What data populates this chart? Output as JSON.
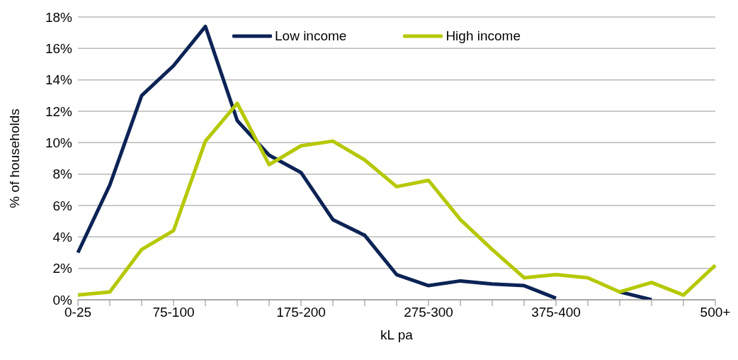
{
  "chart_data": {
    "type": "line",
    "xlabel": "kL pa",
    "ylabel": "% of households",
    "categories": [
      "0-25",
      null,
      null,
      "75-100",
      null,
      null,
      null,
      "175-200",
      null,
      null,
      null,
      "275-300",
      null,
      null,
      null,
      "375-400",
      null,
      null,
      null,
      null,
      "500+"
    ],
    "series": [
      {
        "name": "Low income",
        "color": "#0c2355",
        "values": [
          3.0,
          7.3,
          13.0,
          14.9,
          17.4,
          11.4,
          9.2,
          8.1,
          5.1,
          4.1,
          1.6,
          0.9,
          1.2,
          1.0,
          0.9,
          0.1,
          null,
          0.5,
          0.0,
          null,
          null
        ]
      },
      {
        "name": "High income",
        "color": "#b5c800",
        "values": [
          0.3,
          0.5,
          3.2,
          4.4,
          10.1,
          12.5,
          8.6,
          9.8,
          10.1,
          8.9,
          7.2,
          7.6,
          5.1,
          3.2,
          1.4,
          1.6,
          1.4,
          0.5,
          1.1,
          0.3,
          2.2
        ]
      }
    ],
    "ylim": [
      0,
      18
    ],
    "yticks": [
      {
        "value": 0,
        "label": "0%"
      },
      {
        "value": 2,
        "label": "2%"
      },
      {
        "value": 4,
        "label": "4%"
      },
      {
        "value": 6,
        "label": "6%"
      },
      {
        "value": 8,
        "label": "8%"
      },
      {
        "value": 10,
        "label": "10%"
      },
      {
        "value": 12,
        "label": "12%"
      },
      {
        "value": 14,
        "label": "14%"
      },
      {
        "value": 16,
        "label": "16%"
      },
      {
        "value": 18,
        "label": "18%"
      }
    ],
    "grid": "y",
    "legend": "top",
    "marker": "none",
    "line_style": "solid"
  }
}
